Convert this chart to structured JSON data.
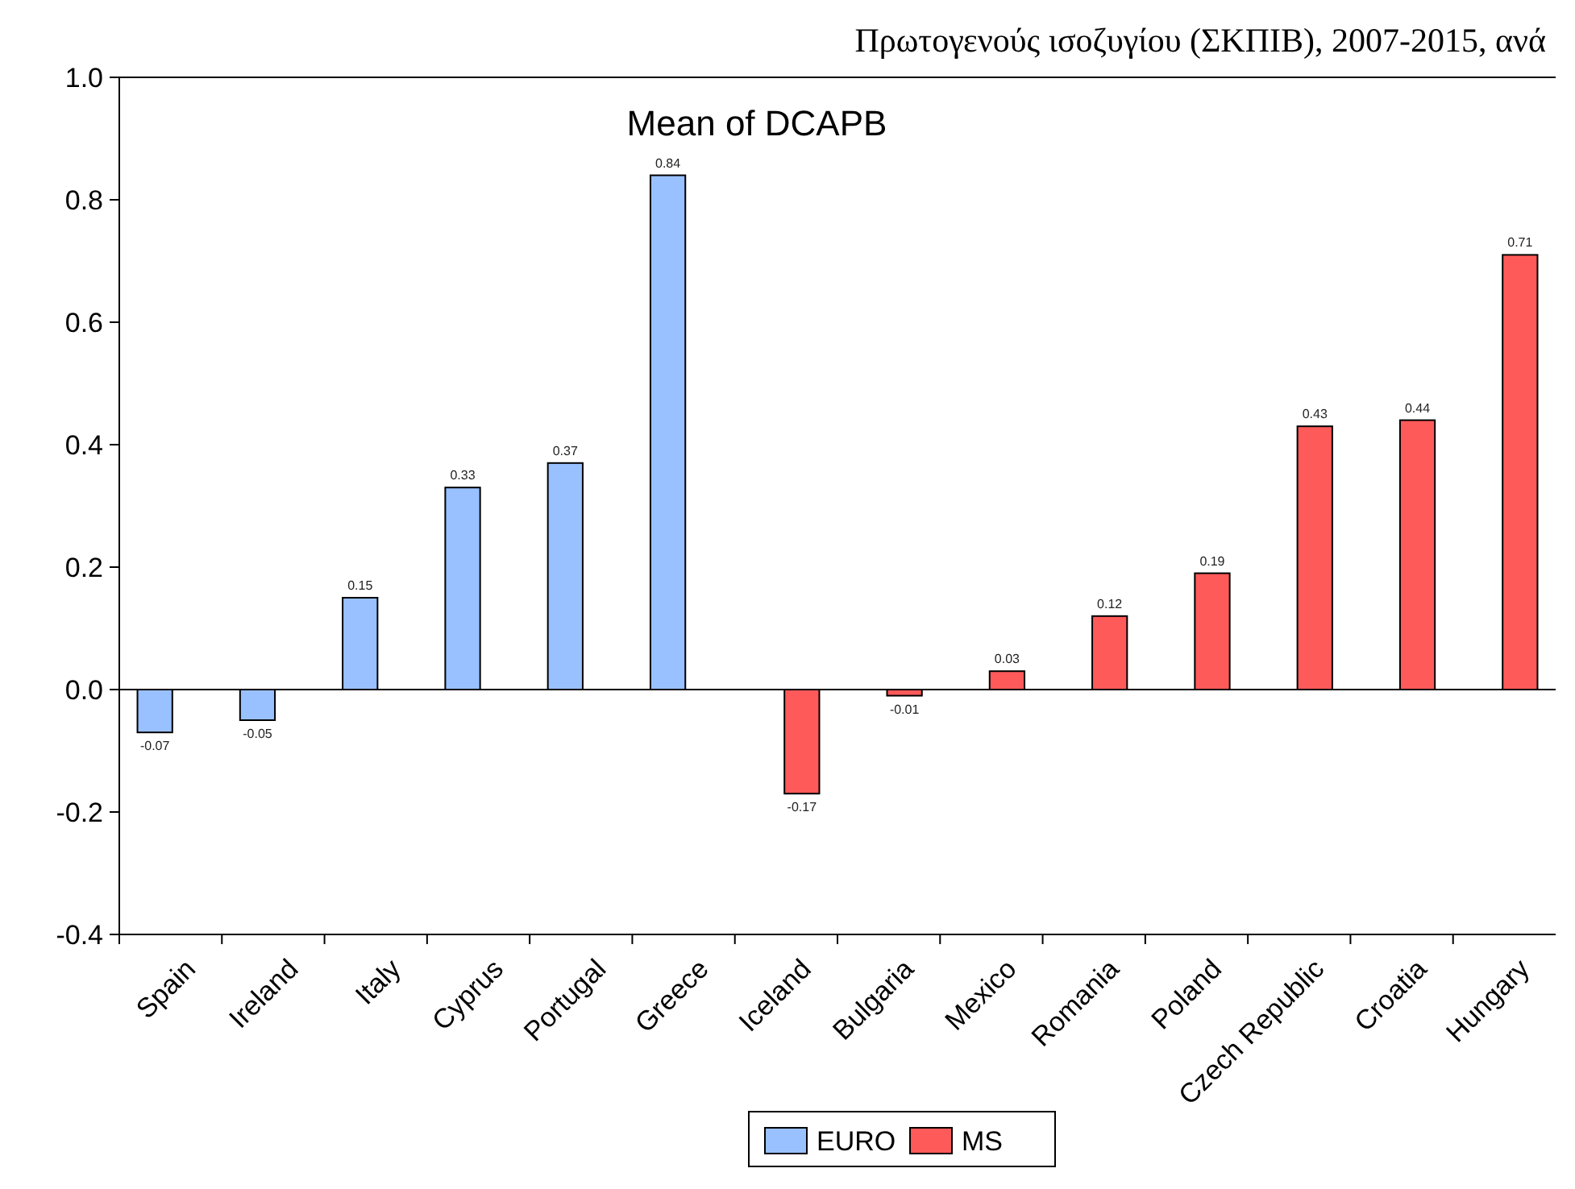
{
  "chart_data": {
    "type": "bar",
    "title": "Mean of DCAPB",
    "annotations": [
      "Πρωτογενούς ισοζυγίου (ΣΚΠΙΒ), 2007-2015, ανά"
    ],
    "categories": [
      "Spain",
      "Ireland",
      "Italy",
      "Cyprus",
      "Portugal",
      "Greece",
      "Iceland",
      "Bulgaria",
      "Mexico",
      "Romania",
      "Poland",
      "Czech Republic",
      "Croatia",
      "Hungary"
    ],
    "series": [
      {
        "name": "EURO",
        "color": "#99c0ff",
        "values": [
          -0.07,
          -0.05,
          0.15,
          0.33,
          0.37,
          0.84,
          null,
          null,
          null,
          null,
          null,
          null,
          null,
          null
        ]
      },
      {
        "name": "MS",
        "color": "#ff5a5a",
        "values": [
          null,
          null,
          null,
          null,
          null,
          null,
          -0.17,
          -0.01,
          0.03,
          0.12,
          0.19,
          0.43,
          0.44,
          0.71
        ]
      }
    ],
    "ylim": [
      -0.4,
      1.0
    ],
    "yticks": [
      {
        "value": -0.4,
        "label": "-0.4"
      },
      {
        "value": -0.2,
        "label": "-0.2"
      },
      {
        "value": 0,
        "label": "0.0"
      },
      {
        "value": 0.2,
        "label": "0.2"
      },
      {
        "value": 0.4,
        "label": "0.4"
      },
      {
        "value": 0.6,
        "label": "0.6"
      },
      {
        "value": 0.8,
        "label": "0.8"
      },
      {
        "value": 1.0,
        "label": "1.0"
      }
    ],
    "legend": "bottom",
    "data_labels": true
  }
}
